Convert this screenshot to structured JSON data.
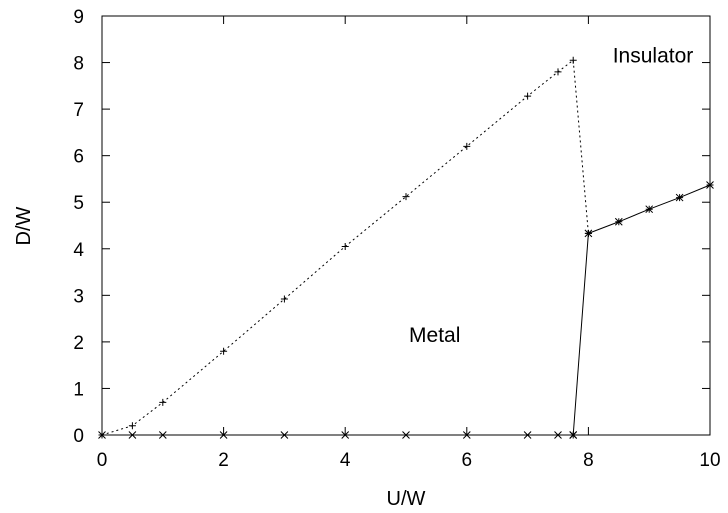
{
  "chart_data": {
    "type": "line",
    "title": "",
    "xlabel": "U/W",
    "ylabel": "D/W",
    "xlim": [
      0,
      10
    ],
    "ylim": [
      0,
      9
    ],
    "xticks": [
      0,
      2,
      4,
      6,
      8,
      10
    ],
    "yticks": [
      0,
      1,
      2,
      3,
      4,
      5,
      6,
      7,
      8,
      9
    ],
    "grid": false,
    "legend": "none",
    "series": [
      {
        "style": "dotted",
        "marker": "plus",
        "color": "#000000",
        "x": [
          0,
          0.5,
          1,
          2,
          3,
          4,
          5,
          6,
          7,
          7.5,
          7.75,
          8
        ],
        "y": [
          0,
          0.2,
          0.7,
          1.8,
          2.92,
          4.05,
          5.12,
          6.2,
          7.28,
          7.8,
          8.05,
          4.33
        ]
      },
      {
        "style": "solid",
        "marker": "star",
        "color": "#000000",
        "x": [
          7.75,
          8,
          8.5,
          9,
          9.5,
          10
        ],
        "y": [
          0,
          4.33,
          4.58,
          4.85,
          5.1,
          5.37
        ]
      },
      {
        "style": "none",
        "marker": "cross",
        "color": "#000000",
        "x": [
          0,
          0.5,
          1,
          2,
          3,
          4,
          5,
          6,
          7,
          7.5,
          7.75
        ],
        "y": [
          0,
          0,
          0,
          0,
          0,
          0,
          0,
          0,
          0,
          0,
          0
        ]
      }
    ],
    "annotations": [
      {
        "text": "Insulator",
        "x": 8.4,
        "y": 8.0
      },
      {
        "text": "Metal",
        "x": 5.05,
        "y": 2.0
      }
    ]
  }
}
